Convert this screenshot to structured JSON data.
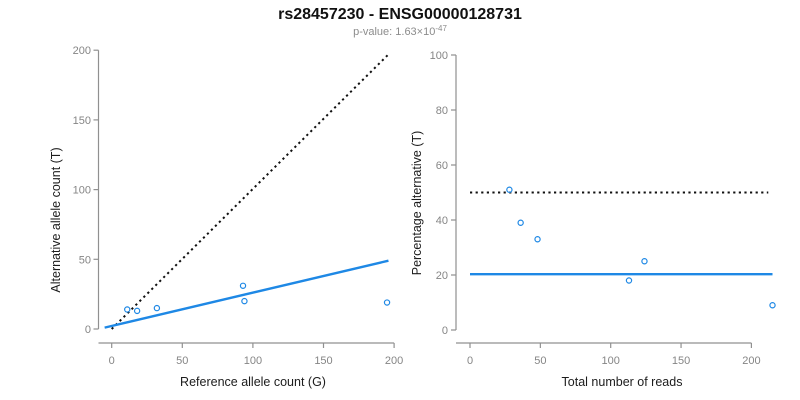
{
  "header": {
    "title": "rs28457230 - ENSG00000128731",
    "subtitle_prefix": "p-value: 1.63×10",
    "subtitle_exponent": "-47"
  },
  "colors": {
    "accent_blue": "#1E88E5",
    "dotted_black": "#111111",
    "axis_gray": "#909090",
    "tick_label_gray": "#858585",
    "title_black": "#111111",
    "subtitle_gray": "#8c8c8c"
  },
  "chart_data": [
    {
      "type": "scatter",
      "panel": "left",
      "xlabel": "Reference allele count (G)",
      "ylabel": "Alternative allele count (T)",
      "xlim": [
        0,
        200
      ],
      "ylim": [
        0,
        200
      ],
      "xticks": [
        0,
        50,
        100,
        150,
        200
      ],
      "yticks": [
        0,
        50,
        100,
        150,
        200
      ],
      "grid": false,
      "points": [
        [
          11,
          14
        ],
        [
          18,
          13
        ],
        [
          32,
          15
        ],
        [
          93,
          31
        ],
        [
          94,
          20
        ],
        [
          195,
          19
        ]
      ],
      "lines": [
        {
          "name": "identity-line",
          "style": "dotted-black",
          "x1": 0,
          "y1": 0,
          "x2": 196,
          "y2": 197
        },
        {
          "name": "regression-line",
          "style": "solid-blue",
          "x1": -5,
          "y1": 1,
          "x2": 196,
          "y2": 49
        }
      ]
    },
    {
      "type": "scatter",
      "panel": "right",
      "xlabel": "Total number of reads",
      "ylabel": "Percentage alternative (T)",
      "xlim": [
        0,
        215
      ],
      "ylim": [
        0,
        100
      ],
      "xticks": [
        0,
        50,
        100,
        150,
        200
      ],
      "yticks": [
        0,
        20,
        40,
        60,
        80,
        100
      ],
      "grid": false,
      "points": [
        [
          28,
          51
        ],
        [
          36,
          39
        ],
        [
          48,
          33
        ],
        [
          113,
          18
        ],
        [
          124,
          25
        ],
        [
          215,
          9
        ]
      ],
      "lines": [
        {
          "name": "expected-percentage-line",
          "style": "dotted-black",
          "x1": 0,
          "y1": 50,
          "x2": 212,
          "y2": 50
        },
        {
          "name": "mean-percentage-line",
          "style": "solid-blue",
          "x1": 0,
          "y1": 20.3,
          "x2": 215,
          "y2": 20.3
        }
      ]
    }
  ]
}
